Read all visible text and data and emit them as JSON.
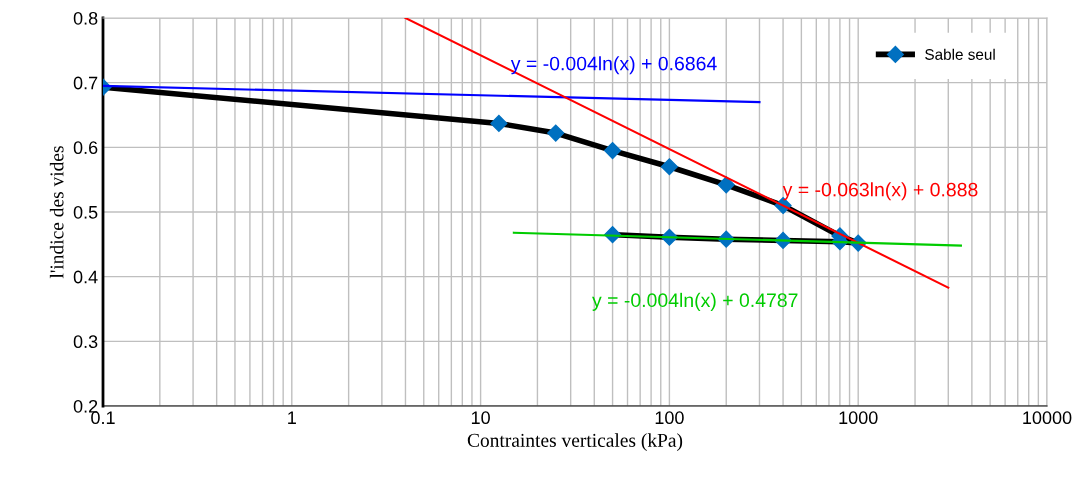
{
  "chart_data": {
    "type": "line",
    "xlabel": "Contraintes verticales (kPa)",
    "ylabel": "l'indice des vides",
    "log": "x",
    "xlim": [
      0.1,
      10000
    ],
    "xticks": [
      0.1,
      1,
      10,
      100,
      1000,
      10000
    ],
    "ylim": [
      0.2,
      0.8
    ],
    "yticks": [
      0.2,
      0.3,
      0.4,
      0.5,
      0.6,
      0.7,
      0.8
    ],
    "grid": true,
    "legend": "top right",
    "marker": "diamond",
    "line_style": "solid",
    "series": [
      {
        "name": "Sable seul",
        "color": "#000000",
        "x": [
          0.1,
          12.5,
          25,
          50,
          100,
          200,
          400,
          800,
          1000,
          800,
          400,
          200,
          100,
          50
        ],
        "values": [
          0.693,
          0.637,
          0.622,
          0.595,
          0.57,
          0.542,
          0.51,
          0.463,
          0.452,
          0.454,
          0.456,
          0.458,
          0.461,
          0.465
        ]
      },
      {
        "color": "#0000ff",
        "x": [
          0.1,
          300
        ],
        "values": [
          0.695,
          0.67
        ],
        "marker": "none"
      },
      {
        "color": "#ff0000",
        "x": [
          4,
          3000
        ],
        "values": [
          0.8,
          0.383
        ],
        "marker": "none"
      },
      {
        "color": "#00cc00",
        "x": [
          15,
          3500
        ],
        "values": [
          0.468,
          0.448
        ],
        "marker": "none"
      }
    ],
    "annotations": [
      "y = -0.004ln(x) + 0.6864",
      "y = -0.063ln(x) + 0.888",
      "y = -0.004ln(x) + 0.4787"
    ]
  }
}
